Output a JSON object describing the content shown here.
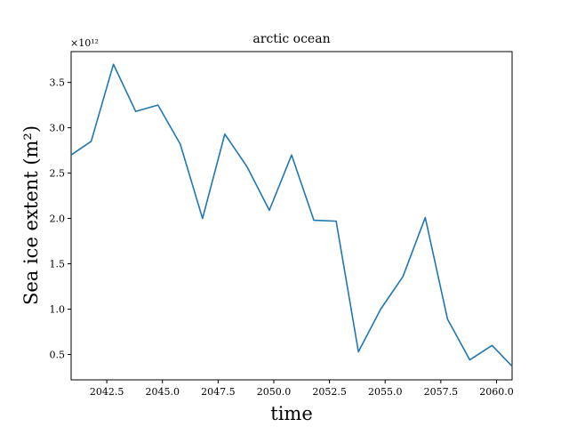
{
  "chart_data": {
    "type": "line",
    "title": "arctic ocean",
    "xlabel": "time",
    "ylabel": "Sea ice extent (m²)",
    "y_offset_label": "×10¹²",
    "grid": false,
    "legend": "none",
    "xlim": [
      2040.9,
      2060.7
    ],
    "ylim": [
      0.22,
      3.84
    ],
    "x_ticks": [
      2042.5,
      2045.0,
      2047.5,
      2050.0,
      2052.5,
      2055.0,
      2057.5,
      2060.0
    ],
    "x_tick_labels": [
      "2042.5",
      "2045.0",
      "2047.5",
      "2050.0",
      "2052.5",
      "2055.0",
      "2057.5",
      "2060.0"
    ],
    "y_ticks": [
      0.5,
      1.0,
      1.5,
      2.0,
      2.5,
      3.0,
      3.5
    ],
    "y_tick_labels": [
      "0.5",
      "1.0",
      "1.5",
      "2.0",
      "2.5",
      "3.0",
      "3.5"
    ],
    "series": [
      {
        "color": "#1f77b4",
        "x": [
          2040.9,
          2041.8,
          2042.8,
          2043.8,
          2044.8,
          2045.8,
          2046.8,
          2047.8,
          2048.8,
          2049.8,
          2050.8,
          2051.8,
          2052.8,
          2053.8,
          2054.8,
          2055.8,
          2056.8,
          2057.8,
          2058.8,
          2059.8,
          2060.7
        ],
        "y": [
          2.7,
          2.85,
          3.7,
          3.18,
          3.25,
          2.82,
          2.0,
          2.93,
          2.57,
          2.09,
          2.7,
          1.98,
          1.97,
          0.53,
          1.0,
          1.36,
          2.01,
          0.89,
          0.44,
          0.6,
          0.37
        ]
      }
    ]
  }
}
